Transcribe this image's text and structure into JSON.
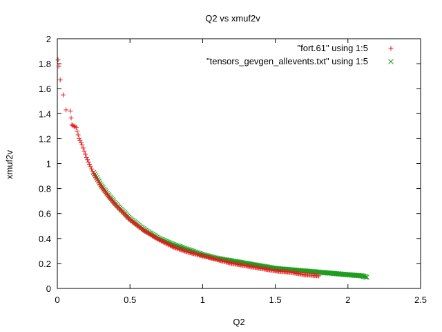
{
  "chart_data": {
    "type": "scatter",
    "title": "Q2 vs xmuf2v",
    "xlabel": "Q2",
    "ylabel": "xmuf2v",
    "xlim": [
      0,
      2.5
    ],
    "ylim": [
      0,
      2
    ],
    "xticks": [
      "0",
      "0.5",
      "1",
      "1.5",
      "2",
      "2.5"
    ],
    "yticks": [
      "0",
      "0.2",
      "0.4",
      "0.6",
      "0.8",
      "1",
      "1.2",
      "1.4",
      "1.6",
      "1.8",
      "2"
    ],
    "grid": false,
    "legend_position": "top-right",
    "series": [
      {
        "name": "\"fort.61\" using 1:5",
        "marker": "plus",
        "color": "#e41a1c",
        "x": [
          0.005,
          0.01,
          0.02,
          0.04,
          0.06,
          0.09,
          0.1,
          0.13,
          0.15,
          0.17,
          0.2,
          0.25,
          0.3,
          0.35,
          0.4,
          0.5,
          0.6,
          0.7,
          0.8,
          0.9,
          1.0,
          1.1,
          1.2,
          1.3,
          1.4,
          1.5,
          1.6,
          1.7,
          1.8
        ],
        "y": [
          1.83,
          1.78,
          1.67,
          1.55,
          1.43,
          1.42,
          1.31,
          1.29,
          1.2,
          1.15,
          1.05,
          0.92,
          0.82,
          0.74,
          0.67,
          0.55,
          0.46,
          0.39,
          0.33,
          0.29,
          0.26,
          0.23,
          0.2,
          0.18,
          0.16,
          0.14,
          0.13,
          0.11,
          0.1
        ]
      },
      {
        "name": "\"tensors_gevgen_allevents.txt\" using 1:5",
        "marker": "x",
        "color": "#1a9c1a",
        "x": [
          0.25,
          0.3,
          0.35,
          0.4,
          0.5,
          0.6,
          0.7,
          0.8,
          0.9,
          1.0,
          1.1,
          1.2,
          1.3,
          1.4,
          1.5,
          1.6,
          1.7,
          1.8,
          1.9,
          2.0,
          2.1,
          2.13
        ],
        "y": [
          0.93,
          0.83,
          0.75,
          0.68,
          0.56,
          0.47,
          0.4,
          0.35,
          0.31,
          0.27,
          0.24,
          0.22,
          0.2,
          0.18,
          0.16,
          0.15,
          0.14,
          0.13,
          0.12,
          0.11,
          0.1,
          0.09
        ]
      }
    ]
  }
}
